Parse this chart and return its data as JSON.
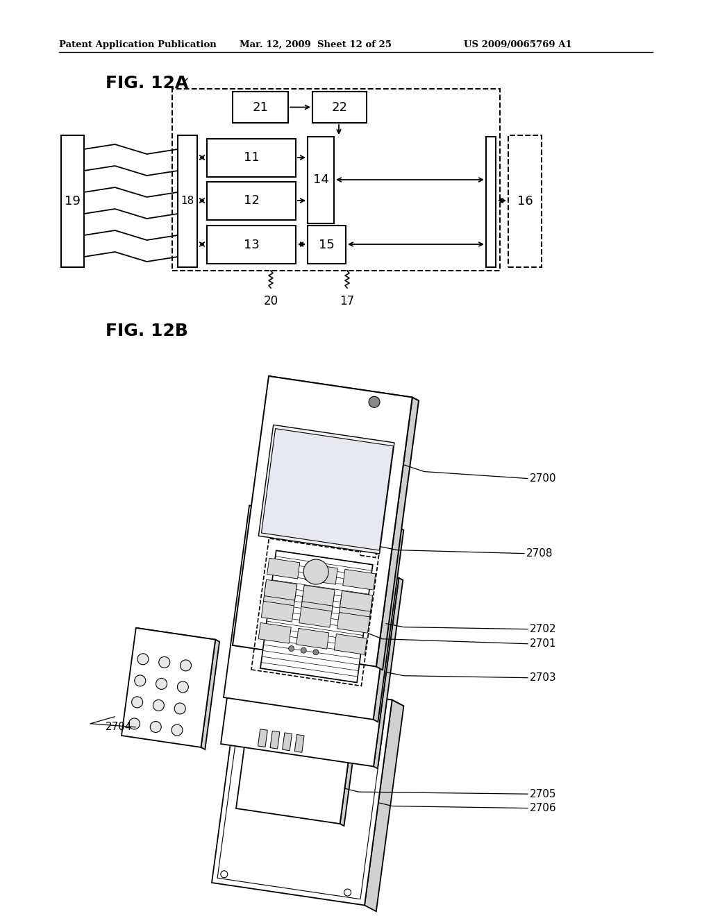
{
  "header_left": "Patent Application Publication",
  "header_mid": "Mar. 12, 2009  Sheet 12 of 25",
  "header_right": "US 2009/0065769 A1",
  "fig12a_label": "FIG. 12A",
  "fig12b_label": "FIG. 12B",
  "bg_color": "#ffffff",
  "text_color": "#000000"
}
